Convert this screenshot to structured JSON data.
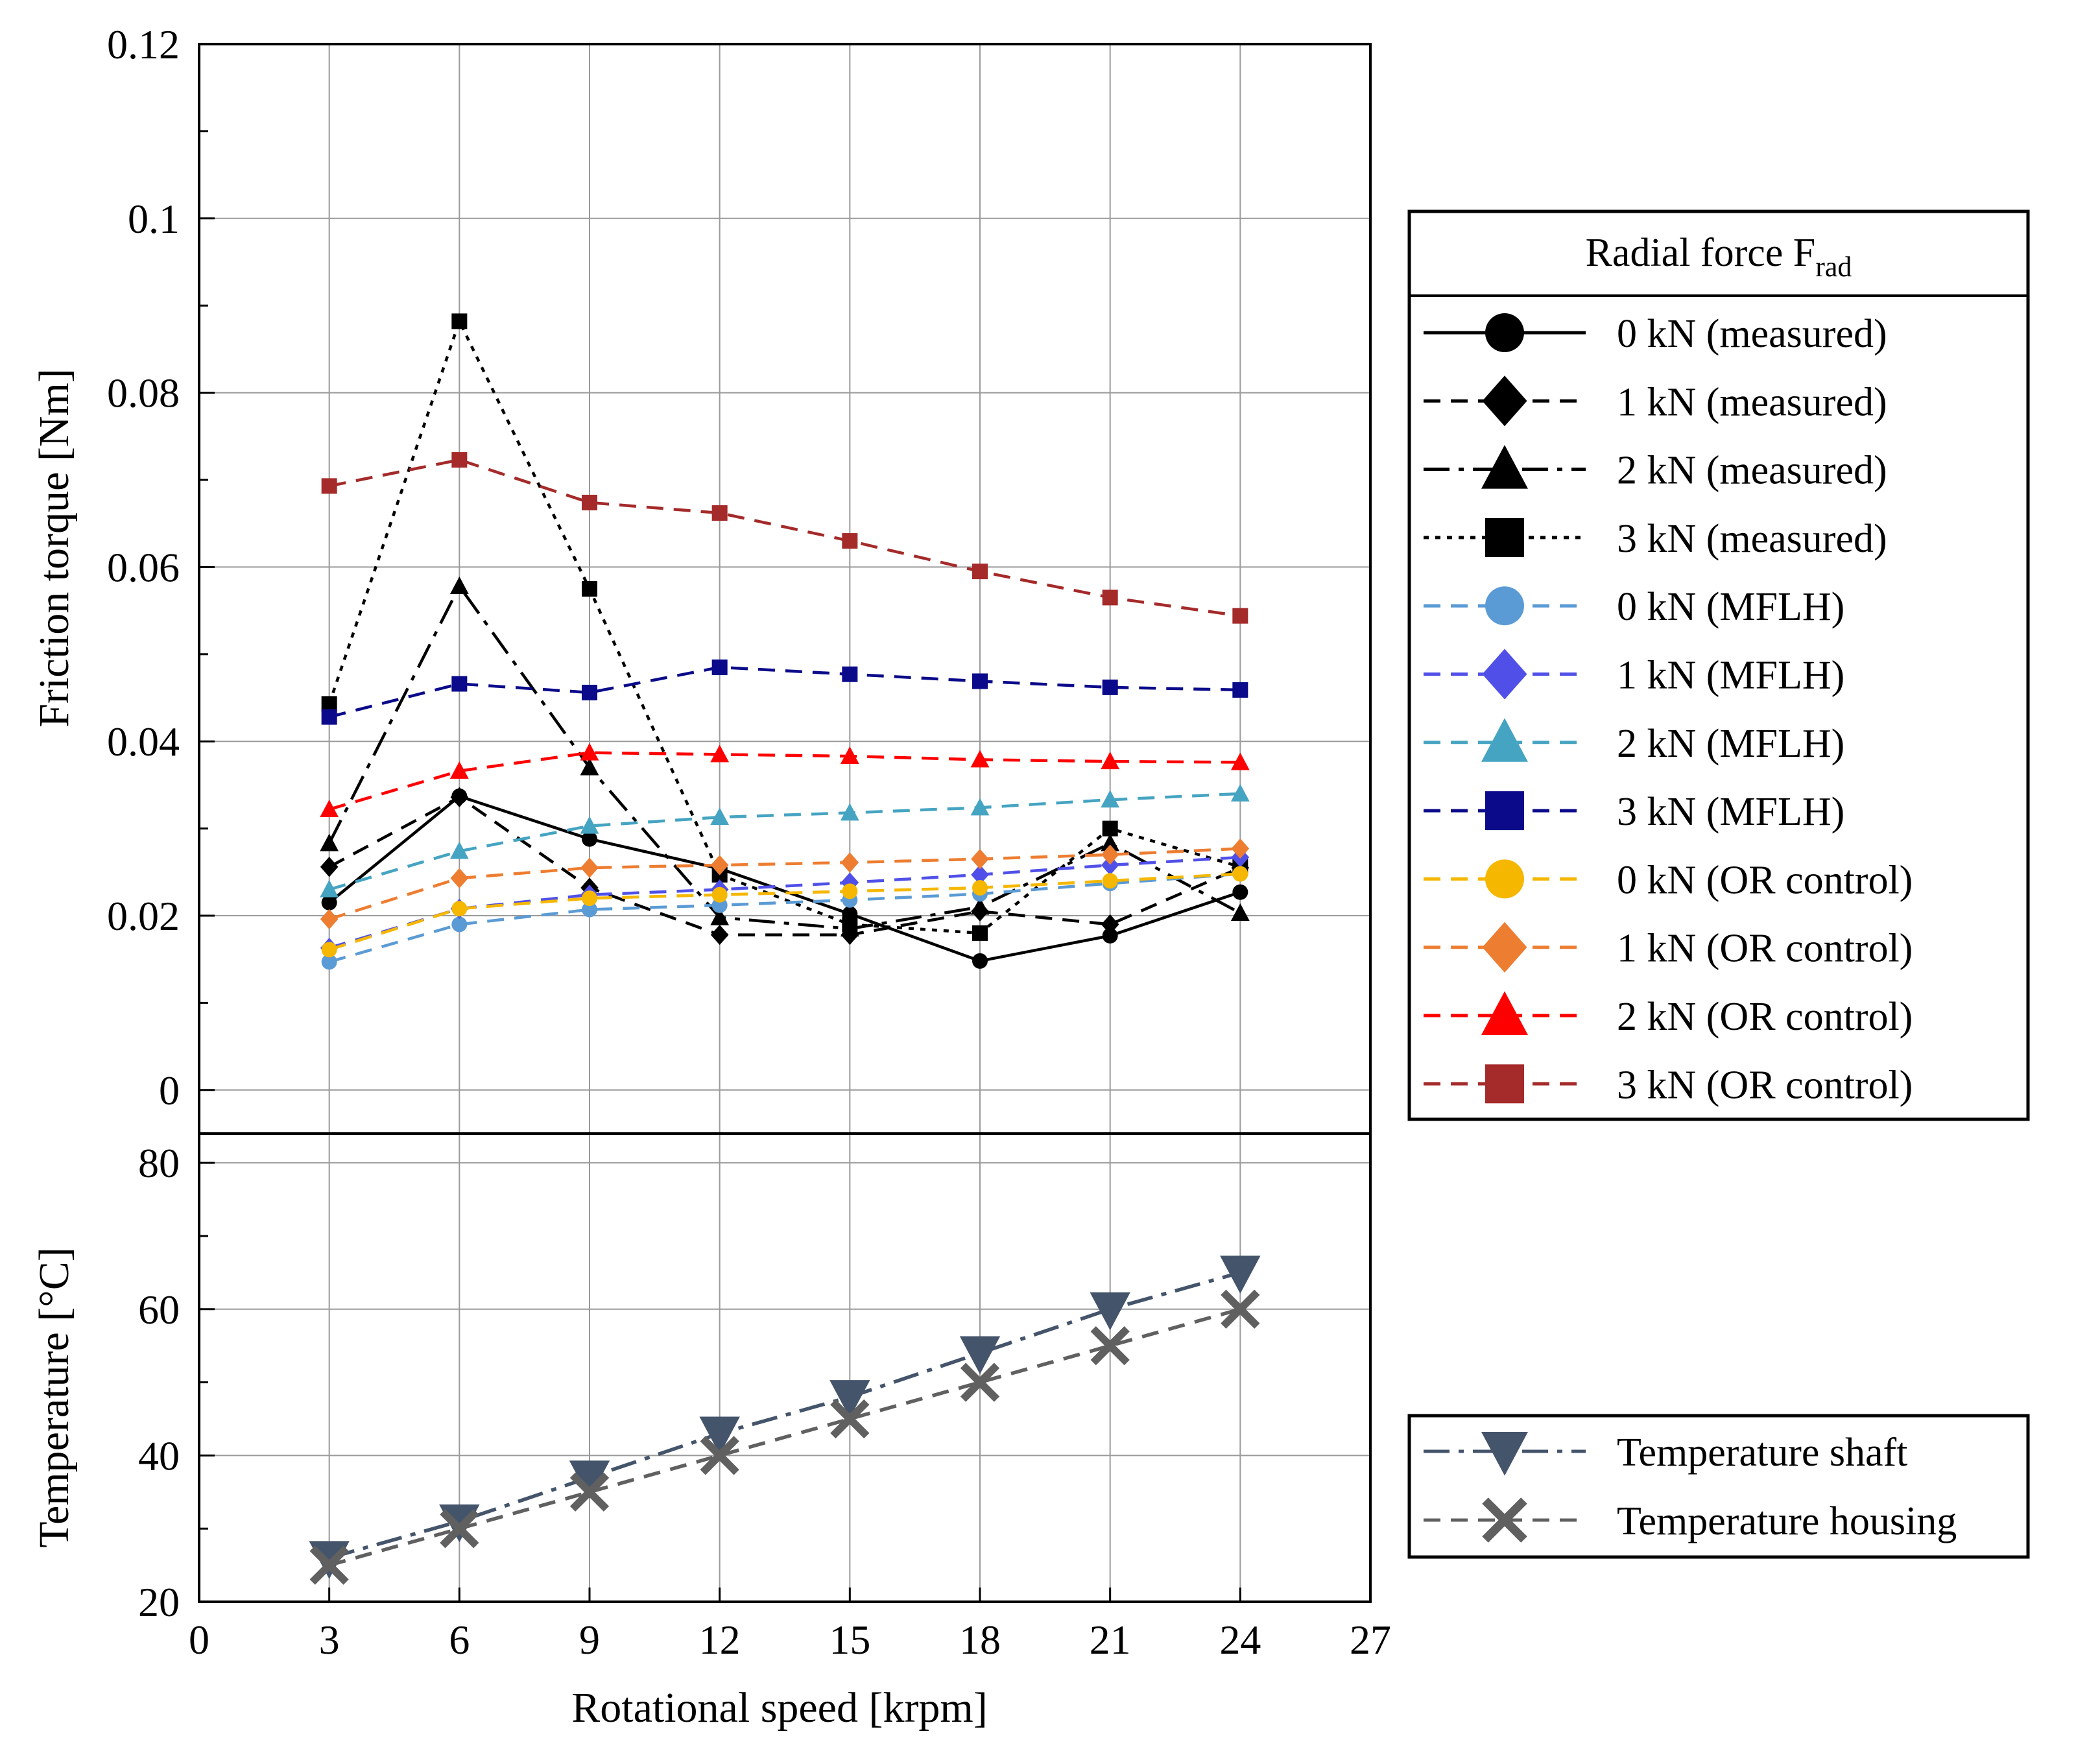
{
  "chart_data": [
    {
      "type": "line",
      "panel": "top",
      "title": "",
      "xlabel": "",
      "ylabel": "Friction torque [Nm]",
      "xlim": [
        0,
        27
      ],
      "ylim": [
        -0.005,
        0.12
      ],
      "x_ticks": [
        0,
        3,
        6,
        9,
        12,
        15,
        18,
        21,
        24,
        27
      ],
      "y_ticks": [
        0,
        0.02,
        0.04,
        0.06,
        0.08,
        0.1,
        0.12
      ],
      "y_tick_labels": [
        "0",
        "0.02",
        "0.04",
        "0.06",
        "0.08",
        "0.1",
        "0.12"
      ],
      "grid": true,
      "legend": {
        "title_main": "Radial force F",
        "title_sub": "rad",
        "placement": "right"
      },
      "x": [
        3,
        6,
        9,
        12,
        15,
        18,
        21,
        24
      ],
      "series": [
        {
          "name": "0 kN (measured)",
          "color": "#000000",
          "dash": "solid",
          "marker": "circle",
          "values": [
            0.0215,
            0.0337,
            0.0288,
            0.0254,
            0.0202,
            0.0148,
            0.0177,
            0.0227
          ]
        },
        {
          "name": "1 kN (measured)",
          "color": "#000000",
          "dash": "dash",
          "marker": "diamond",
          "values": [
            0.0256,
            0.0336,
            0.0232,
            0.0178,
            0.0178,
            0.0205,
            0.019,
            0.0255
          ]
        },
        {
          "name": "2 kN (measured)",
          "color": "#000000",
          "dash": "dashdot",
          "marker": "triangle-up",
          "values": [
            0.0283,
            0.0578,
            0.037,
            0.0198,
            0.0185,
            0.021,
            0.0283,
            0.0203
          ]
        },
        {
          "name": "3 kN (measured)",
          "color": "#000000",
          "dash": "dot",
          "marker": "square",
          "values": [
            0.0443,
            0.0882,
            0.0575,
            0.0247,
            0.019,
            0.018,
            0.03,
            0.0256
          ]
        },
        {
          "name": "0 kN (MFLH)",
          "color": "#5b9bd5",
          "dash": "dash",
          "marker": "circle",
          "values": [
            0.0147,
            0.019,
            0.0207,
            0.0212,
            0.0218,
            0.0225,
            0.0237,
            0.0248
          ]
        },
        {
          "name": "1 kN (MFLH)",
          "color": "#5050e8",
          "dash": "dash",
          "marker": "diamond",
          "values": [
            0.0163,
            0.0208,
            0.0224,
            0.023,
            0.0238,
            0.0247,
            0.0258,
            0.0267
          ]
        },
        {
          "name": "2 kN (MFLH)",
          "color": "#45a4c1",
          "dash": "dash",
          "marker": "triangle-up",
          "values": [
            0.023,
            0.0274,
            0.0303,
            0.0313,
            0.0318,
            0.0324,
            0.0333,
            0.034
          ]
        },
        {
          "name": "3 kN (MFLH)",
          "color": "#0a0a8a",
          "dash": "dash",
          "marker": "square",
          "values": [
            0.0428,
            0.0466,
            0.0456,
            0.0485,
            0.0477,
            0.0469,
            0.0462,
            0.0459
          ]
        },
        {
          "name": "0 kN (OR control)",
          "color": "#f5b700",
          "dash": "dash",
          "marker": "circle",
          "values": [
            0.0161,
            0.0208,
            0.022,
            0.0224,
            0.0228,
            0.0232,
            0.024,
            0.0248
          ]
        },
        {
          "name": "1 kN (OR control)",
          "color": "#ed7d31",
          "dash": "dash",
          "marker": "diamond",
          "values": [
            0.0196,
            0.0243,
            0.0255,
            0.0258,
            0.0261,
            0.0265,
            0.027,
            0.0277
          ]
        },
        {
          "name": "2 kN (OR control)",
          "color": "#ff0000",
          "dash": "dash",
          "marker": "triangle-up",
          "values": [
            0.0322,
            0.0366,
            0.0387,
            0.0385,
            0.0383,
            0.0379,
            0.0377,
            0.0376
          ]
        },
        {
          "name": "3 kN (OR control)",
          "color": "#a52a2a",
          "dash": "dash",
          "marker": "square",
          "values": [
            0.0693,
            0.0723,
            0.0674,
            0.0662,
            0.063,
            0.0595,
            0.0565,
            0.0544
          ]
        }
      ]
    },
    {
      "type": "line",
      "panel": "bottom",
      "title": "",
      "xlabel": "Rotational speed [krpm]",
      "ylabel": "Temperature [°C]",
      "xlim": [
        0,
        27
      ],
      "ylim": [
        20,
        84
      ],
      "x_ticks": [
        0,
        3,
        6,
        9,
        12,
        15,
        18,
        21,
        24,
        27
      ],
      "x_tick_labels": [
        "0",
        "3",
        "6",
        "9",
        "12",
        "15",
        "18",
        "21",
        "24",
        "27"
      ],
      "y_ticks": [
        20,
        40,
        60,
        80
      ],
      "y_tick_labels": [
        "20",
        "40",
        "60",
        "80"
      ],
      "grid": true,
      "legend": {
        "placement": "right"
      },
      "x": [
        3,
        6,
        9,
        12,
        15,
        18,
        21,
        24
      ],
      "series": [
        {
          "name": "Temperature shaft",
          "color": "#44546a",
          "dash": "dashdot",
          "marker": "triangle-down",
          "values": [
            26,
            31,
            37,
            43,
            48,
            54,
            60,
            65
          ]
        },
        {
          "name": "Temperature housing",
          "color": "#606060",
          "dash": "dash",
          "marker": "x",
          "values": [
            25,
            30,
            35,
            40,
            45,
            50,
            55,
            60
          ]
        }
      ]
    }
  ]
}
